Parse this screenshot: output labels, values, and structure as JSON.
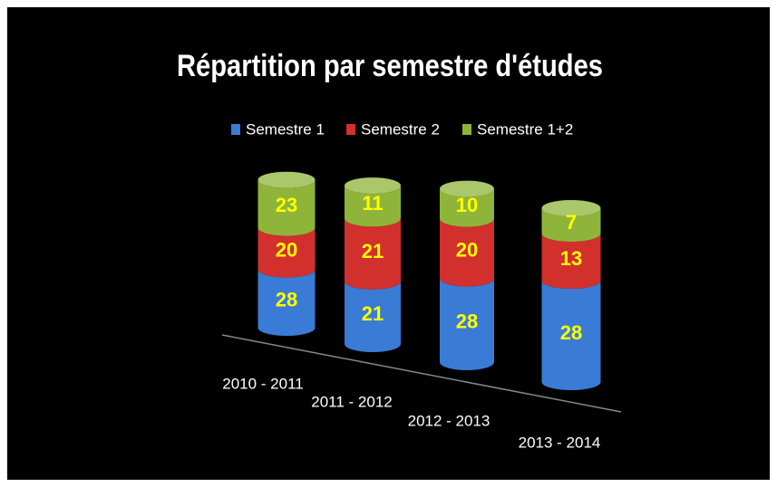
{
  "chart_data": {
    "type": "bar",
    "stacked": true,
    "title": "Répartition par semestre d'études",
    "categories": [
      "2010 - 2011",
      "2011 - 2012",
      "2012 - 2013",
      "2013 - 2014"
    ],
    "series": [
      {
        "name": "Semestre 1",
        "color": "#3a7bd5",
        "values": [
          28,
          21,
          28,
          28
        ]
      },
      {
        "name": "Semestre 2",
        "color": "#d2302c",
        "values": [
          20,
          21,
          20,
          13
        ]
      },
      {
        "name": "Semestre 1+2",
        "color": "#8fb43a",
        "values": [
          23,
          11,
          10,
          7
        ]
      }
    ],
    "legend": "top"
  }
}
